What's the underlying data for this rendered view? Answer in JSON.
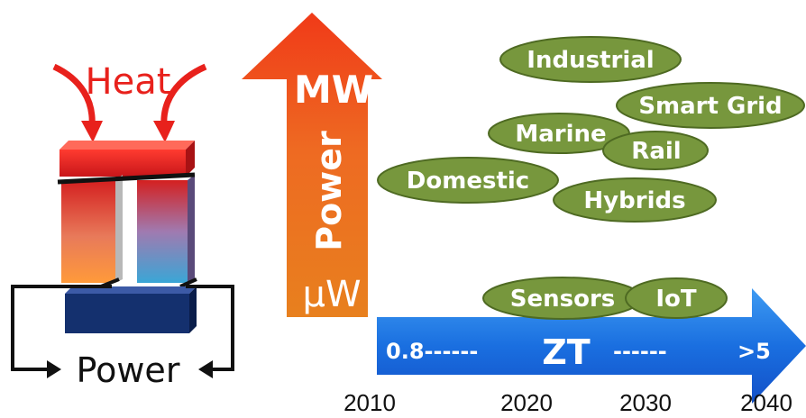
{
  "module": {
    "heat_label": "Heat",
    "power_label": "Power"
  },
  "power_axis": {
    "top_label": "MW",
    "mid_label": "Power",
    "bottom_label": "µW"
  },
  "zt_axis": {
    "start_label": "0.8------",
    "title": "ZT",
    "end_dashes": "------",
    "end_label": ">5",
    "years": [
      "2010",
      "2020",
      "2030",
      "2040"
    ]
  },
  "applications": [
    "Industrial",
    "Smart Grid",
    "Marine",
    "Rail",
    "Domestic",
    "Hybrids",
    "Sensors",
    "IoT"
  ],
  "colors": {
    "heat_red": "#e8211c",
    "power_arrow_top": "#f0541c",
    "power_arrow_bottom": "#e8741e",
    "zt_arrow": "#1a6fe0",
    "ellipse_fill": "#77973d",
    "ellipse_stroke": "#4e6a22",
    "plate_blue": "#14306e"
  }
}
